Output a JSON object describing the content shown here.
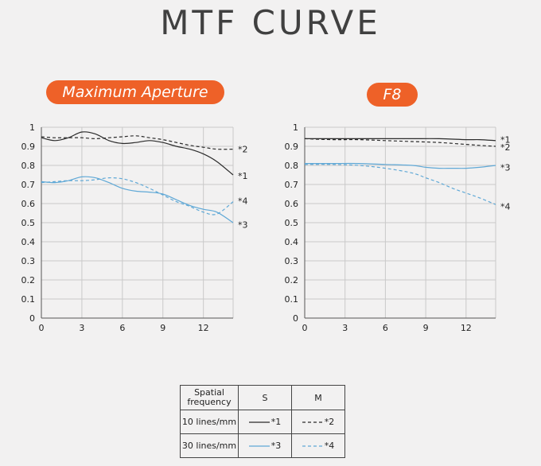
{
  "title": "MTF CURVE",
  "chart_data": [
    {
      "type": "line",
      "title": "Maximum Aperture",
      "x_ticks": [
        "0",
        "3",
        "6",
        "9",
        "12"
      ],
      "y_ticks": [
        "0",
        "0.1",
        "0.2",
        "0.3",
        "0.4",
        "0.5",
        "0.6",
        "0.7",
        "0.8",
        "0.9",
        "1"
      ],
      "xlim": [
        0,
        14.2
      ],
      "ylim": [
        0,
        1
      ],
      "grid": true,
      "series": [
        {
          "name": "*1",
          "color": "#2b2b2b",
          "dashed": false,
          "x": [
            0,
            1,
            2,
            3,
            4,
            5,
            6,
            7,
            8,
            9,
            10,
            11,
            12,
            13,
            14.2
          ],
          "y": [
            0.945,
            0.93,
            0.945,
            0.975,
            0.965,
            0.93,
            0.915,
            0.92,
            0.93,
            0.92,
            0.9,
            0.885,
            0.86,
            0.82,
            0.75
          ]
        },
        {
          "name": "*2",
          "color": "#2b2b2b",
          "dashed": true,
          "x": [
            0,
            1,
            2,
            3,
            4,
            5,
            6,
            7,
            8,
            9,
            10,
            11,
            12,
            13,
            14.2
          ],
          "y": [
            0.95,
            0.945,
            0.945,
            0.945,
            0.94,
            0.945,
            0.95,
            0.955,
            0.945,
            0.935,
            0.92,
            0.905,
            0.895,
            0.885,
            0.885
          ]
        },
        {
          "name": "*3",
          "color": "#5fa8d6",
          "dashed": false,
          "x": [
            0,
            1,
            2,
            3,
            4,
            5,
            6,
            7,
            8,
            9,
            10,
            11,
            12,
            13,
            14.2
          ],
          "y": [
            0.715,
            0.71,
            0.72,
            0.74,
            0.735,
            0.71,
            0.68,
            0.665,
            0.66,
            0.65,
            0.62,
            0.59,
            0.57,
            0.555,
            0.5
          ]
        },
        {
          "name": "*4",
          "color": "#5fa8d6",
          "dashed": true,
          "x": [
            0,
            1,
            2,
            3,
            4,
            5,
            6,
            7,
            8,
            9,
            10,
            11,
            12,
            13,
            14.2
          ],
          "y": [
            0.71,
            0.715,
            0.72,
            0.72,
            0.725,
            0.735,
            0.73,
            0.71,
            0.68,
            0.645,
            0.61,
            0.585,
            0.555,
            0.545,
            0.61
          ]
        }
      ],
      "end_labels": [
        {
          "name": "*2",
          "y": 0.885
        },
        {
          "name": "*1",
          "y": 0.745
        },
        {
          "name": "*4",
          "y": 0.615
        },
        {
          "name": "*3",
          "y": 0.49
        }
      ]
    },
    {
      "type": "line",
      "title": "F8",
      "x_ticks": [
        "0",
        "3",
        "6",
        "9",
        "12"
      ],
      "y_ticks": [
        "0",
        "0.1",
        "0.2",
        "0.3",
        "0.4",
        "0.5",
        "0.6",
        "0.7",
        "0.8",
        "0.9",
        "1"
      ],
      "xlim": [
        0,
        14.2
      ],
      "ylim": [
        0,
        1
      ],
      "grid": true,
      "series": [
        {
          "name": "*1",
          "color": "#2b2b2b",
          "dashed": false,
          "x": [
            0,
            2,
            4,
            6,
            8,
            10,
            12,
            13,
            14.2
          ],
          "y": [
            0.94,
            0.94,
            0.94,
            0.94,
            0.94,
            0.94,
            0.935,
            0.935,
            0.93
          ]
        },
        {
          "name": "*2",
          "color": "#2b2b2b",
          "dashed": true,
          "x": [
            0,
            2,
            4,
            6,
            8,
            10,
            12,
            13,
            14.2
          ],
          "y": [
            0.94,
            0.935,
            0.935,
            0.93,
            0.925,
            0.92,
            0.91,
            0.905,
            0.9
          ]
        },
        {
          "name": "*3",
          "color": "#5fa8d6",
          "dashed": false,
          "x": [
            0,
            2,
            4,
            6,
            8,
            9,
            10,
            11,
            12,
            13,
            14.2
          ],
          "y": [
            0.81,
            0.81,
            0.81,
            0.805,
            0.8,
            0.79,
            0.785,
            0.785,
            0.785,
            0.79,
            0.8
          ]
        },
        {
          "name": "*4",
          "color": "#5fa8d6",
          "dashed": true,
          "x": [
            0,
            2,
            4,
            6,
            8,
            9,
            10,
            11,
            12,
            13,
            14.2
          ],
          "y": [
            0.805,
            0.805,
            0.8,
            0.785,
            0.76,
            0.735,
            0.71,
            0.68,
            0.655,
            0.63,
            0.595
          ]
        }
      ],
      "end_labels": [
        {
          "name": "*1",
          "y": 0.935
        },
        {
          "name": "*2",
          "y": 0.895
        },
        {
          "name": "*3",
          "y": 0.79
        },
        {
          "name": "*4",
          "y": 0.585
        }
      ]
    }
  ],
  "legend": {
    "header_label_line1": "Spatial",
    "header_label_line2": "frequency",
    "col_s": "S",
    "col_m": "M",
    "rows": [
      {
        "label": "10 lines/mm",
        "s_label": "*1",
        "m_label": "*2",
        "color": "#2b2b2b"
      },
      {
        "label": "30 lines/mm",
        "s_label": "*3",
        "m_label": "*4",
        "color": "#5fa8d6"
      }
    ]
  }
}
